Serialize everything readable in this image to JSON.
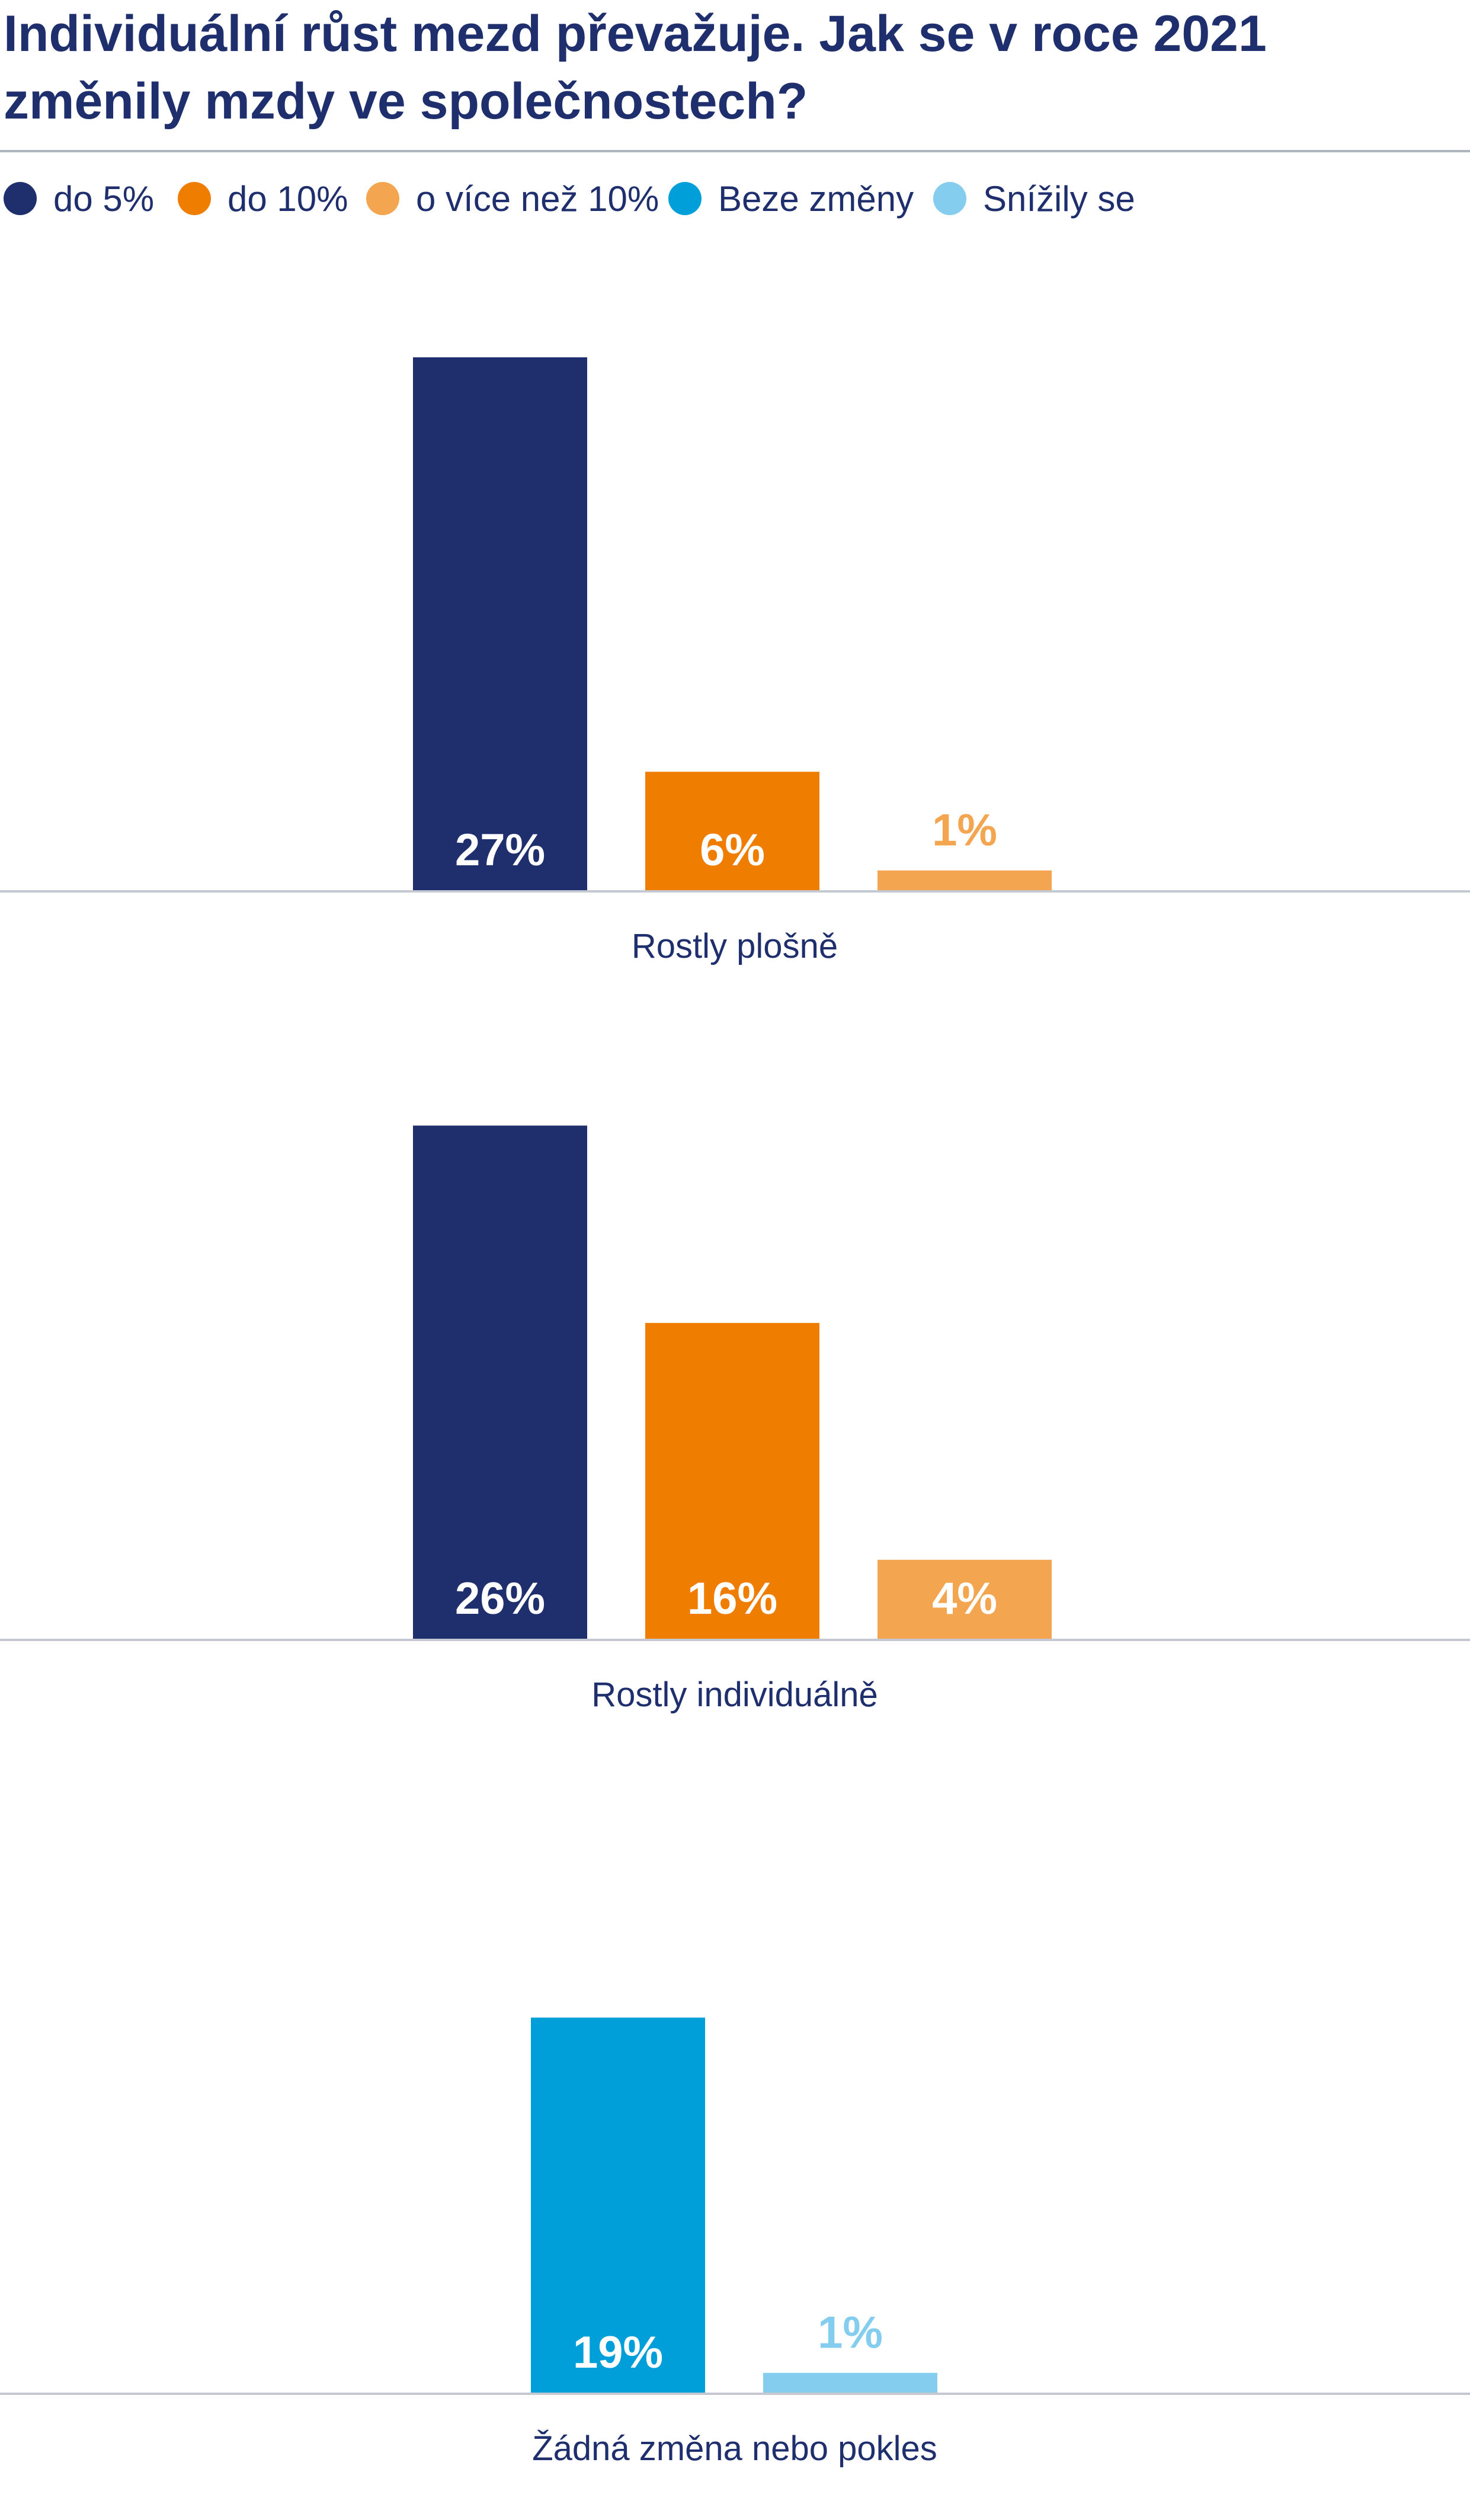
{
  "title": "Individuální růst mezd převažuje. Jak se v roce 2021 změnily mzdy ve společnostech?",
  "legend": [
    {
      "label": "do 5%",
      "color": "#1f2f6e"
    },
    {
      "label": "do 10%",
      "color": "#ef7d00"
    },
    {
      "label": "o více než 10%",
      "color": "#f3a64f"
    },
    {
      "label": "Beze změny",
      "color": "#009fda"
    },
    {
      "label": "Snížily se",
      "color": "#84cdee"
    }
  ],
  "chart_data": [
    {
      "type": "bar",
      "category": "Rostly plošně",
      "series": [
        {
          "name": "do 5%",
          "value": 27,
          "label": "27%",
          "color": "#1f2f6e"
        },
        {
          "name": "do 10%",
          "value": 6,
          "label": "6%",
          "color": "#ef7d00"
        },
        {
          "name": "o více než 10%",
          "value": 1,
          "label": "1%",
          "color": "#f3a64f"
        }
      ]
    },
    {
      "type": "bar",
      "category": "Rostly individuálně",
      "series": [
        {
          "name": "do 5%",
          "value": 26,
          "label": "26%",
          "color": "#1f2f6e"
        },
        {
          "name": "do 10%",
          "value": 16,
          "label": "16%",
          "color": "#ef7d00"
        },
        {
          "name": "o více než 10%",
          "value": 4,
          "label": "4%",
          "color": "#f3a64f"
        }
      ]
    },
    {
      "type": "bar",
      "category": "Žádná změna nebo pokles",
      "series": [
        {
          "name": "Beze změny",
          "value": 19,
          "label": "19%",
          "color": "#009fda"
        },
        {
          "name": "Snížily se",
          "value": 1,
          "label": "1%",
          "color": "#84cdee"
        }
      ]
    }
  ]
}
